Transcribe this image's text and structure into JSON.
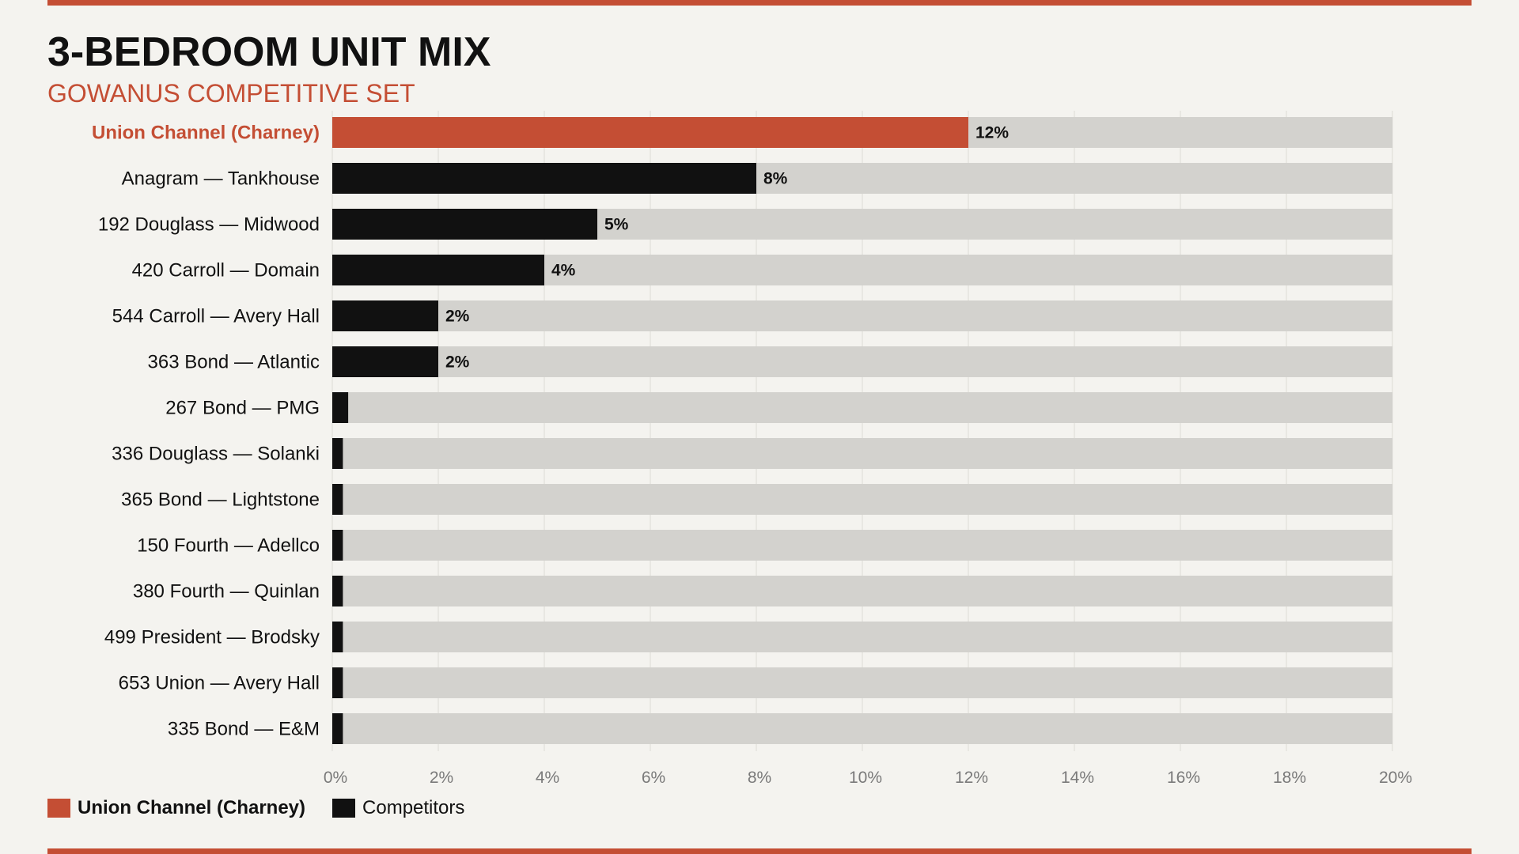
{
  "header": {
    "title": "3-BEDROOM UNIT MIX",
    "subtitle": "GOWANUS COMPETITIVE SET"
  },
  "colors": {
    "accent": "#c44e34",
    "competitor": "#111111",
    "track": "#d3d2ce",
    "grid": "#dcdbd6",
    "tick": "#7a7a7a",
    "background": "#f4f3ef"
  },
  "legend": {
    "highlight_label": "Union Channel (Charney)",
    "competitor_label": "Competitors"
  },
  "chart_data": {
    "type": "bar",
    "orientation": "horizontal",
    "title": "3-BEDROOM UNIT MIX",
    "subtitle": "GOWANUS COMPETITIVE SET",
    "xlabel": "",
    "ylabel": "",
    "xlim": [
      0,
      20
    ],
    "grid": true,
    "legend_position": "bottom-left",
    "tick_values": [
      0,
      2,
      4,
      6,
      8,
      10,
      12,
      14,
      16,
      18,
      20
    ],
    "tick_labels": [
      "0%",
      "2%",
      "4%",
      "6%",
      "8%",
      "10%",
      "12%",
      "14%",
      "16%",
      "18%",
      "20%"
    ],
    "categories": [
      "Union Channel (Charney)",
      "Anagram — Tankhouse",
      "192 Douglass — Midwood",
      "420 Carroll — Domain",
      "544 Carroll — Avery Hall",
      "363 Bond — Atlantic",
      "267 Bond — PMG",
      "336 Douglass — Solanki",
      "365 Bond — Lightstone",
      "150 Fourth — Adellco",
      "380 Fourth — Quinlan",
      "499 President — Brodsky",
      "653 Union — Avery Hall",
      "335 Bond — E&M"
    ],
    "values": [
      12,
      8,
      5,
      4,
      2,
      2,
      0.3,
      0.2,
      0.2,
      0.2,
      0.2,
      0.2,
      0.2,
      0.2
    ],
    "value_labels": [
      "12%",
      "8%",
      "5%",
      "4%",
      "2%",
      "2%",
      "",
      "",
      "",
      "",
      "",
      "",
      "",
      ""
    ],
    "highlight": [
      true,
      false,
      false,
      false,
      false,
      false,
      false,
      false,
      false,
      false,
      false,
      false,
      false,
      false
    ]
  }
}
